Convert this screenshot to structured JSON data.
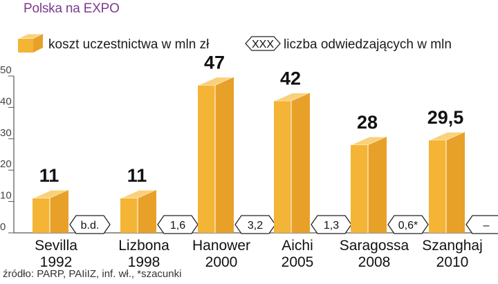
{
  "title": "Polska na EXPO",
  "source": "źródło: PARP, PAIiIZ, inf. wł., *szacunki",
  "legend": {
    "cost": "koszt uczestnictwa w mln zł",
    "visitors_marker": "XXX",
    "visitors": "liczba odwiedzających w mln"
  },
  "colors": {
    "bar_front": "#f4b435",
    "bar_side": "#e8a128",
    "bar_top": "#fbd07a",
    "bar_edge": "#ffffff",
    "badge_fill": "#ffffff",
    "badge_stroke": "#222222",
    "axis": "#555555",
    "title": "#7a3b8f"
  },
  "chart_data": {
    "type": "bar",
    "categories": [
      "Sevilla\n1992",
      "Lizbona\n1998",
      "Hanower\n2000",
      "Aichi\n2005",
      "Saragossa\n2008",
      "Szanghaj\n2010"
    ],
    "category_names": [
      "Sevilla",
      "Lizbona",
      "Hanower",
      "Aichi",
      "Saragossa",
      "Szanghaj"
    ],
    "category_years": [
      "1992",
      "1998",
      "2000",
      "2005",
      "2008",
      "2010"
    ],
    "series": [
      {
        "name": "koszt uczestnictwa w mln zł",
        "values": [
          11,
          11,
          47,
          42,
          28,
          29.5
        ]
      }
    ],
    "value_labels": [
      "11",
      "11",
      "47",
      "42",
      "28",
      "29,5"
    ],
    "visitors_labels": [
      "b.d.",
      "1,6",
      "3,2",
      "1,3",
      "0,6*",
      "–"
    ],
    "yticks": [
      "0",
      "10",
      "20",
      "30",
      "40",
      "50"
    ],
    "ylim": [
      0,
      50
    ],
    "grid": false,
    "legend_position": "top"
  }
}
